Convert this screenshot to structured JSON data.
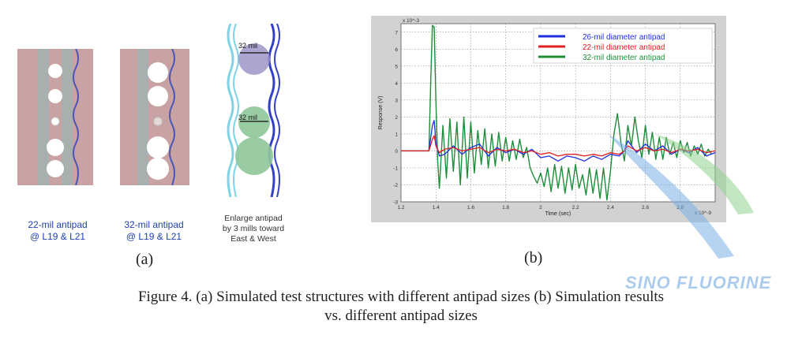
{
  "panel_a": {
    "structure1": {
      "line1": "22-mil antipad",
      "line2": "@ L19 & L21"
    },
    "structure2": {
      "line1": "32-mil antipad",
      "line2": "@ L19 & L21"
    },
    "structure3": {
      "dim_top": "32 mil",
      "dim_mid": "32 mil",
      "line1": "Enlarge antipad",
      "line2": "by 3 mills toward",
      "line3": "East & West"
    },
    "label": "(a)"
  },
  "panel_b": {
    "label": "(b)"
  },
  "caption": {
    "line1": "Figure 4.  (a) Simulated test structures with different antipad sizes (b) Simulation results",
    "line2": "vs. different antipad sizes"
  },
  "watermark": "SINO FLUORINE",
  "colors": {
    "blue": "#1f2fe0",
    "red": "#e02020",
    "green": "#1d8f3a",
    "board": "#c9a3a3",
    "watermark": "#9ec3ea"
  },
  "chart_data": {
    "type": "line",
    "xlabel": "Time (sec)",
    "ylabel": "Response (V)",
    "y_exponent": "x 10^-3",
    "x_exponent": "x 10^-9",
    "xlim": [
      1.2,
      3.0
    ],
    "ylim": [
      -3,
      7.5
    ],
    "xticks": [
      "1.2",
      "1.4",
      "1.6",
      "1.8",
      "2",
      "2.2",
      "2.4",
      "2.6",
      "2.8"
    ],
    "yticks": [
      "7",
      "6",
      "5",
      "4",
      "3",
      "2",
      "1",
      "0",
      "-1",
      "-2",
      "-3"
    ],
    "grid": true,
    "legend_position": "top-right",
    "series": [
      {
        "name": "26-mil diameter antipad",
        "color": "#1f2fe0",
        "x": [
          1.2,
          1.36,
          1.38,
          1.39,
          1.4,
          1.42,
          1.45,
          1.5,
          1.55,
          1.6,
          1.65,
          1.7,
          1.75,
          1.8,
          1.85,
          1.9,
          1.95,
          2.0,
          2.05,
          2.1,
          2.15,
          2.2,
          2.25,
          2.3,
          2.35,
          2.4,
          2.45,
          2.48,
          2.5,
          2.55,
          2.6,
          2.65,
          2.7,
          2.75,
          2.8,
          2.85,
          2.9,
          2.95,
          3.0
        ],
        "y": [
          0,
          0,
          1.5,
          1.8,
          0.5,
          -0.3,
          -0.2,
          0.3,
          -0.2,
          0.2,
          0.4,
          -0.3,
          0.2,
          -0.1,
          0.1,
          -0.2,
          0.1,
          -0.4,
          -0.3,
          -0.6,
          -0.3,
          -0.4,
          -0.6,
          -0.3,
          -0.5,
          -0.2,
          -0.3,
          0.0,
          0.6,
          -0.1,
          0.4,
          0.0,
          0.3,
          -0.2,
          0.1,
          -0.1,
          0.2,
          -0.3,
          -0.1
        ]
      },
      {
        "name": "22-mil diameter antipad",
        "color": "#e02020",
        "x": [
          1.2,
          1.36,
          1.38,
          1.39,
          1.4,
          1.42,
          1.45,
          1.5,
          1.55,
          1.6,
          1.65,
          1.7,
          1.75,
          1.8,
          1.85,
          1.9,
          1.95,
          2.0,
          2.05,
          2.1,
          2.15,
          2.2,
          2.25,
          2.3,
          2.35,
          2.4,
          2.45,
          2.48,
          2.5,
          2.55,
          2.6,
          2.65,
          2.7,
          2.75,
          2.8,
          2.85,
          2.9,
          2.95,
          3.0
        ],
        "y": [
          0,
          0,
          0.7,
          0.9,
          0.3,
          -0.1,
          0.1,
          0.2,
          0.0,
          0.1,
          0.2,
          -0.1,
          0.1,
          0.0,
          0.1,
          -0.1,
          0.0,
          -0.2,
          -0.1,
          -0.3,
          -0.2,
          -0.2,
          -0.3,
          -0.2,
          -0.3,
          -0.1,
          -0.2,
          0.0,
          0.3,
          0.0,
          0.2,
          0.0,
          0.1,
          -0.1,
          0.1,
          0.0,
          0.1,
          -0.1,
          0.0
        ]
      },
      {
        "name": "32-mil diameter antipad",
        "color": "#1d8f3a",
        "x": [
          1.2,
          1.36,
          1.37,
          1.38,
          1.39,
          1.4,
          1.41,
          1.42,
          1.44,
          1.46,
          1.48,
          1.5,
          1.52,
          1.54,
          1.56,
          1.58,
          1.6,
          1.62,
          1.64,
          1.66,
          1.68,
          1.7,
          1.72,
          1.74,
          1.76,
          1.78,
          1.8,
          1.82,
          1.84,
          1.86,
          1.88,
          1.9,
          1.92,
          1.94,
          1.96,
          1.98,
          2.0,
          2.02,
          2.04,
          2.06,
          2.08,
          2.1,
          2.12,
          2.14,
          2.16,
          2.18,
          2.2,
          2.22,
          2.24,
          2.26,
          2.28,
          2.3,
          2.32,
          2.34,
          2.36,
          2.38,
          2.4,
          2.42,
          2.44,
          2.46,
          2.48,
          2.5,
          2.52,
          2.54,
          2.56,
          2.58,
          2.6,
          2.62,
          2.64,
          2.66,
          2.68,
          2.7,
          2.72,
          2.74,
          2.76,
          2.78,
          2.8,
          2.82,
          2.84,
          2.86,
          2.88,
          2.9,
          2.92,
          2.94,
          2.96,
          2.98
        ],
        "y": [
          0,
          0,
          4.0,
          7.4,
          7.3,
          3.0,
          -0.5,
          -2.2,
          1.5,
          -1.6,
          1.9,
          -1.2,
          1.7,
          -2.0,
          2.0,
          -1.6,
          1.7,
          -1.3,
          1.2,
          -0.8,
          1.3,
          -1.0,
          1.0,
          -0.9,
          1.1,
          -0.6,
          0.8,
          -0.6,
          0.6,
          -0.5,
          0.7,
          -0.4,
          0.2,
          -1.0,
          -1.5,
          -1.9,
          -1.3,
          -2.1,
          -1.0,
          -2.4,
          -0.8,
          -2.2,
          -0.9,
          -2.5,
          -1.0,
          -2.3,
          -0.8,
          -2.2,
          -1.4,
          -2.6,
          -1.0,
          -2.5,
          -1.1,
          -2.8,
          -1.0,
          -2.9,
          -1.2,
          1.0,
          2.2,
          0.5,
          -0.6,
          1.5,
          0.3,
          2.0,
          0.6,
          -0.4,
          1.5,
          -0.2,
          1.1,
          -0.5,
          0.8,
          -0.5,
          0.8,
          -0.2,
          0.5,
          -0.4,
          0.6,
          -0.1,
          0.5,
          -0.3,
          0.3,
          -0.2,
          0.4,
          -0.3,
          0.1,
          -0.2
        ]
      }
    ]
  }
}
